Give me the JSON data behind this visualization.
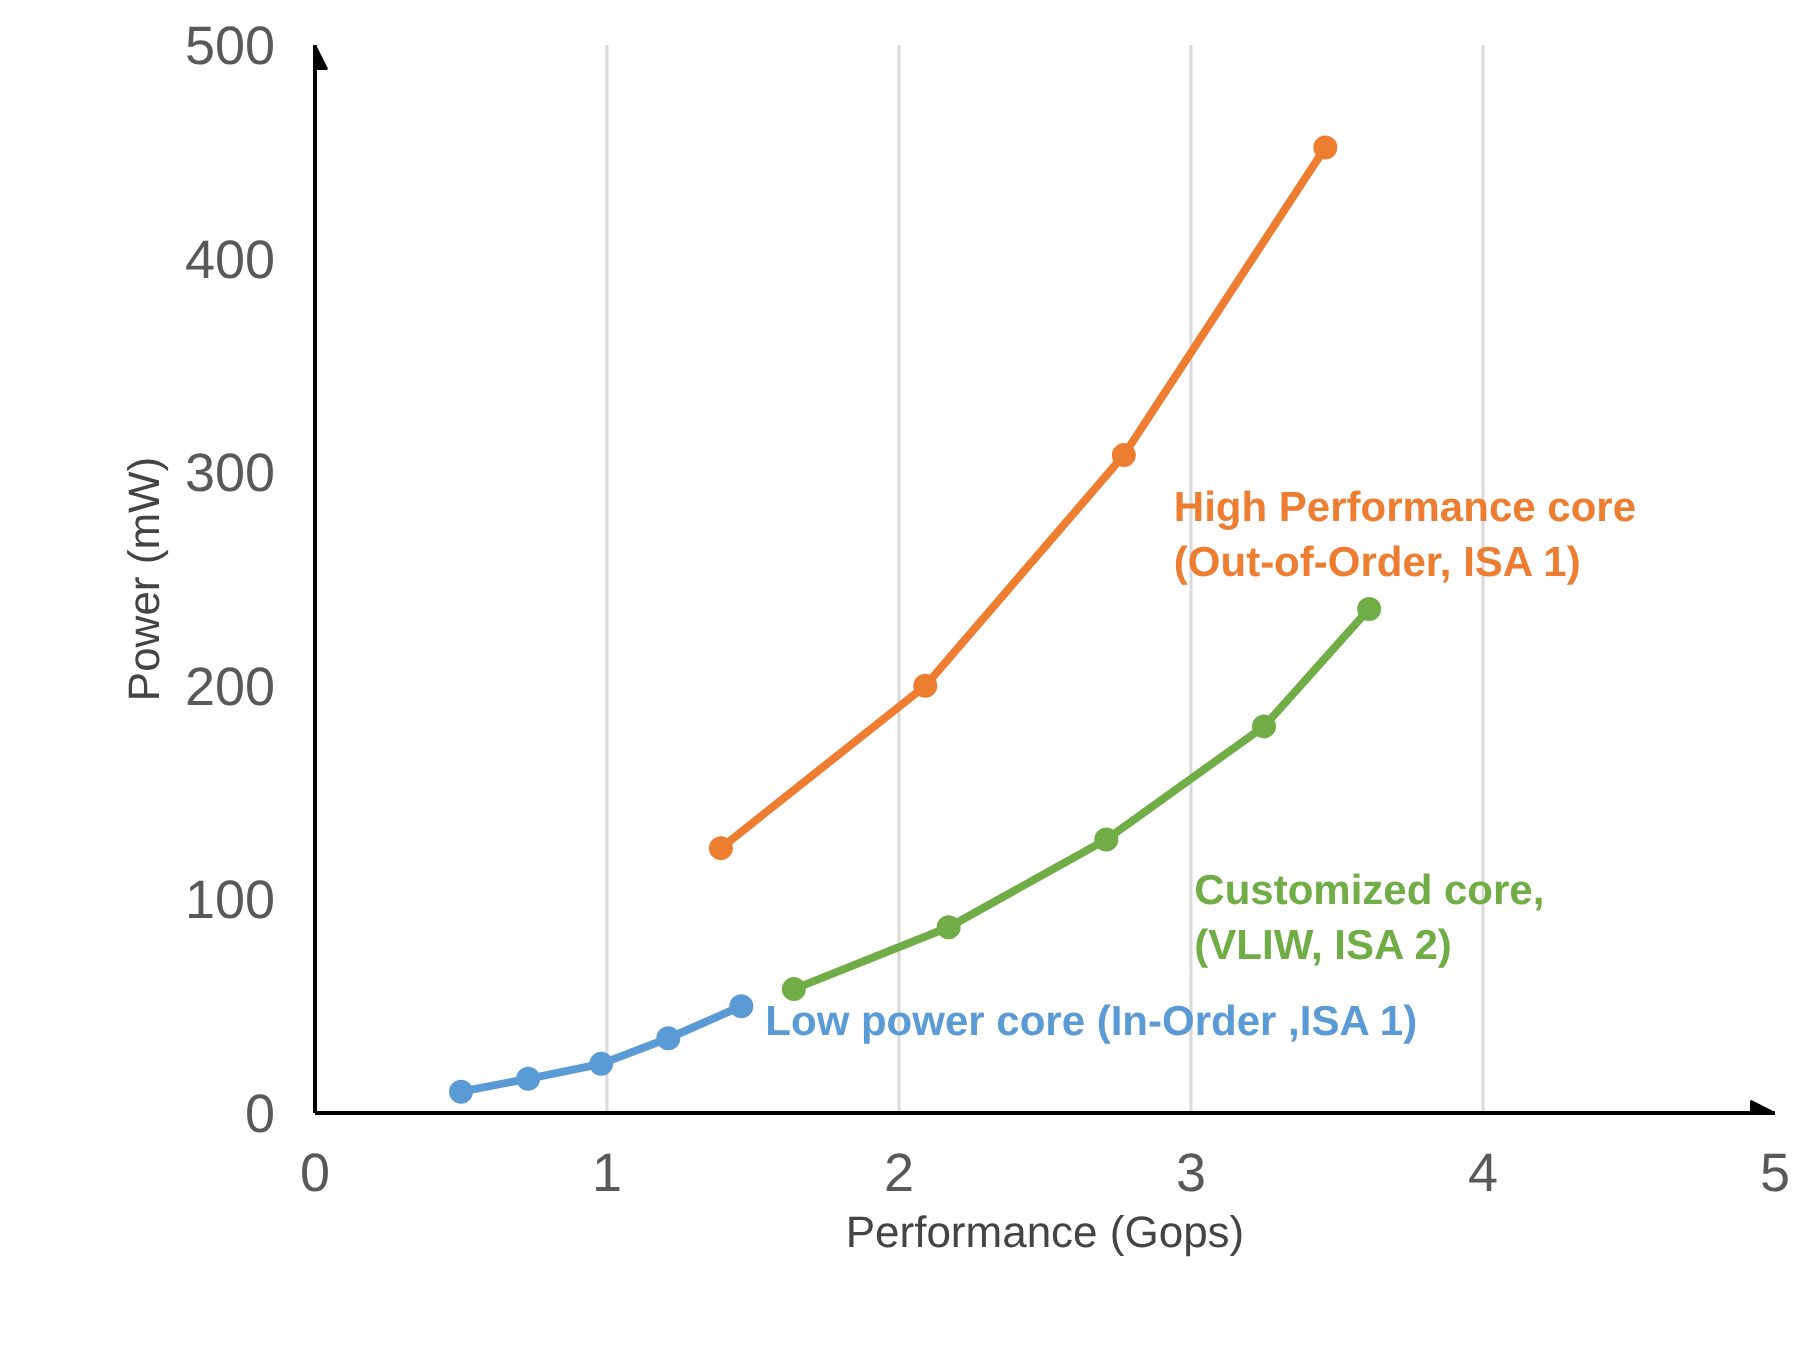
{
  "chart_data": {
    "type": "line",
    "xlabel": "Performance (Gops)",
    "ylabel": "Power (mW)",
    "xlim": [
      0,
      5
    ],
    "ylim": [
      0,
      500
    ],
    "xticks": [
      0,
      1,
      2,
      3,
      4,
      5
    ],
    "yticks": [
      0,
      100,
      200,
      300,
      400,
      500
    ],
    "grid": "x",
    "marker": "circle",
    "line_style": "solid",
    "series": [
      {
        "name": "Low power core (In-Order ,ISA 1)",
        "color": "#5b9bd5",
        "x": [
          0.5,
          0.73,
          0.98,
          1.21,
          1.46
        ],
        "values": [
          10,
          16,
          23,
          35,
          50
        ]
      },
      {
        "name": "High Performance core\n(Out-of-Order, ISA 1)",
        "color": "#ed7d31",
        "x": [
          1.39,
          2.09,
          2.77,
          3.46
        ],
        "values": [
          124,
          200,
          308,
          452
        ]
      },
      {
        "name": "Customized core,\n(VLIW, ISA 2)",
        "color": "#70ad47",
        "x": [
          1.64,
          2.17,
          2.71,
          3.25,
          3.61
        ],
        "values": [
          58,
          87,
          128,
          181,
          236
        ]
      }
    ]
  }
}
